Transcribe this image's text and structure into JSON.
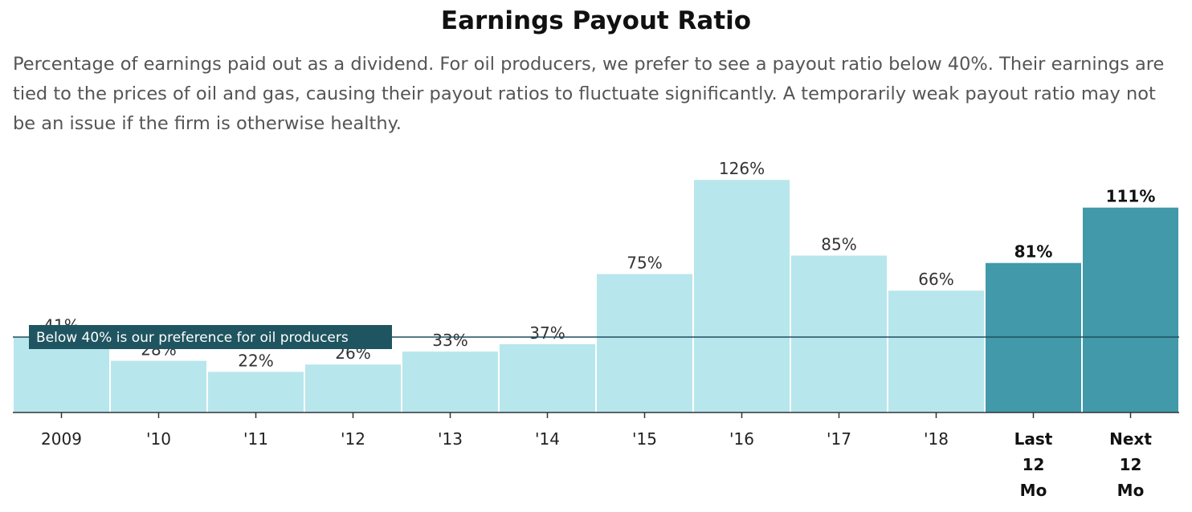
{
  "chart_data": {
    "type": "bar",
    "title": "Earnings Payout Ratio",
    "subtitle": "Percentage of earnings paid out as a dividend. For oil producers, we prefer to see a payout ratio below 40%. Their earnings are tied to the prices of oil and gas, causing their payout ratios to fluctuate significantly. A temporarily weak payout ratio may not be an issue if the firm is otherwise healthy.",
    "categories": [
      "2009",
      "'10",
      "'11",
      "'12",
      "'13",
      "'14",
      "'15",
      "'16",
      "'17",
      "'18",
      "Last 12 Mo",
      "Next 12 Mo"
    ],
    "values": [
      41,
      28,
      22,
      26,
      33,
      37,
      75,
      126,
      85,
      66,
      81,
      111
    ],
    "labels": [
      "41%",
      "28%",
      "22%",
      "26%",
      "33%",
      "37%",
      "75%",
      "126%",
      "85%",
      "66%",
      "81%",
      "111%"
    ],
    "highlighted": [
      false,
      false,
      false,
      false,
      false,
      false,
      false,
      false,
      false,
      false,
      true,
      true
    ],
    "ylim": [
      0,
      130
    ],
    "reference_line": {
      "value": 40,
      "label": "Below 40% is our preference for oil producers"
    },
    "colors": {
      "bar": "#b8e6ed",
      "bar_highlight": "#4199aa",
      "reference_line": "#1f4f5c",
      "reference_label_bg": "#1f5560",
      "axis": "#333333"
    }
  }
}
